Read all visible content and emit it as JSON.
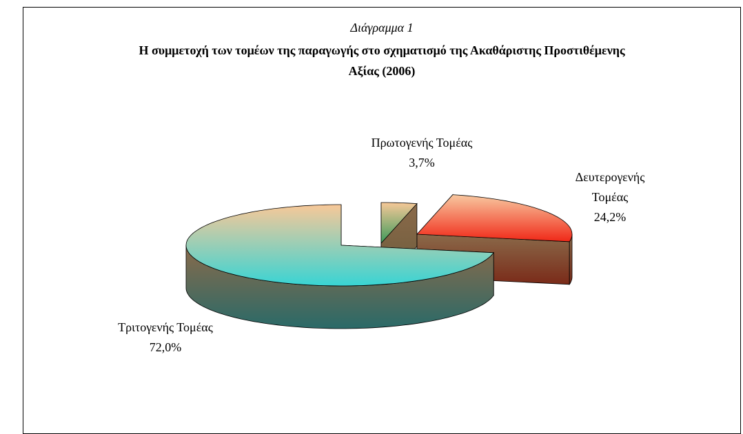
{
  "chart_data": {
    "type": "pie3d",
    "subtitle": "Διάγραμμα 1",
    "title": "Η συμμετοχή των τομέων της παραγωγής στο σχηματισμό της Ακαθάριστης Προστιθέμενης Αξίας (2006)",
    "categories": [
      "Πρωτογενής Τομέας",
      "Δευτερογενής Τομέας",
      "Τριτογενής Τομέας"
    ],
    "values": [
      3.7,
      24.2,
      72.0
    ],
    "value_labels": [
      "3,7%",
      "24,2%",
      "72,0%"
    ],
    "colors": [
      [
        "#f6c898",
        "#3c9a5a",
        "#6a5a3a"
      ],
      [
        "#f8c8a0",
        "#f02818",
        "#7a2a18"
      ],
      [
        "#f8c898",
        "#38d4d4",
        "#2a6a68"
      ]
    ]
  }
}
